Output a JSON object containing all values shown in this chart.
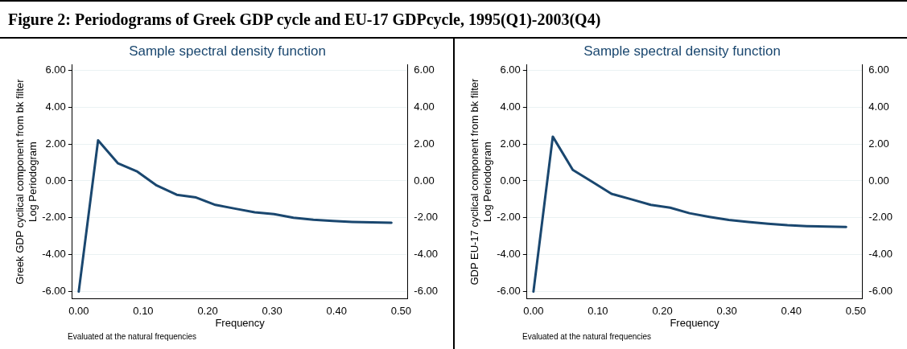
{
  "chart_data": [
    {
      "type": "line",
      "title": "Sample spectral density function",
      "xlabel": "Frequency",
      "ylabel": "Greek GDP cyclical component from bk filter\nLog Periodogram",
      "annotations": [
        "Figure 2: Periodograms of Greek GDP cycle and EU-17 GDPcycle, 1995(Q1)-2003(Q4)",
        "Evaluated at the natural frequencies"
      ],
      "x": [
        0,
        0.03,
        0.061,
        0.091,
        0.121,
        0.152,
        0.182,
        0.212,
        0.242,
        0.273,
        0.303,
        0.333,
        0.364,
        0.394,
        0.424,
        0.455,
        0.485
      ],
      "series": [
        {
          "color": "#1a476f",
          "values": [
            -6.0,
            2.2,
            0.95,
            0.5,
            -0.25,
            -0.75,
            -0.9,
            -1.3,
            -1.5,
            -1.7,
            -1.8,
            -2.0,
            -2.1,
            -2.17,
            -2.22,
            -2.25,
            -2.27
          ]
        }
      ],
      "xlim": [
        -0.01,
        0.51
      ],
      "xticks": [
        {
          "value": 0,
          "label": "0.00"
        },
        {
          "value": 0.1,
          "label": "0.10"
        },
        {
          "value": 0.2,
          "label": "0.20"
        },
        {
          "value": 0.3,
          "label": "0.30"
        },
        {
          "value": 0.4,
          "label": "0.40"
        },
        {
          "value": 0.5,
          "label": "0.50"
        }
      ],
      "ylim": [
        -6.4,
        6.3
      ],
      "yticks": [
        {
          "value": -6,
          "label": "-6.00"
        },
        {
          "value": -4,
          "label": "-4.00"
        },
        {
          "value": -2,
          "label": "-2.00"
        },
        {
          "value": 0,
          "label": "0.00"
        },
        {
          "value": 2,
          "label": "2.00"
        },
        {
          "value": 4,
          "label": "4.00"
        },
        {
          "value": 6,
          "label": "6.00"
        }
      ],
      "y2lim": [
        -6.4,
        6.3
      ],
      "y2ticks": [
        {
          "value": -6,
          "label": "-6.00"
        },
        {
          "value": -4,
          "label": "-4.00"
        },
        {
          "value": -2,
          "label": "-2.00"
        },
        {
          "value": 0,
          "label": "0.00"
        },
        {
          "value": 2,
          "label": "2.00"
        },
        {
          "value": 4,
          "label": "4.00"
        },
        {
          "value": 6,
          "label": "6.00"
        }
      ],
      "grid": "y",
      "legend": false,
      "marker": "none",
      "line_style": "solid"
    },
    {
      "type": "line",
      "title": "Sample spectral density function",
      "xlabel": "Frequency",
      "ylabel": "GDP EU-17 cyclical component from bk filter\nLog Periodogram",
      "annotations": [
        "Evaluated at the natural frequencies"
      ],
      "x": [
        0,
        0.03,
        0.061,
        0.091,
        0.121,
        0.152,
        0.182,
        0.212,
        0.242,
        0.273,
        0.303,
        0.333,
        0.364,
        0.394,
        0.424,
        0.455,
        0.485
      ],
      "series": [
        {
          "color": "#1a476f",
          "values": [
            -6.0,
            2.4,
            0.6,
            -0.05,
            -0.7,
            -1.0,
            -1.3,
            -1.45,
            -1.75,
            -1.95,
            -2.12,
            -2.22,
            -2.32,
            -2.4,
            -2.45,
            -2.48,
            -2.5
          ]
        }
      ],
      "xlim": [
        -0.01,
        0.51
      ],
      "xticks": [
        {
          "value": 0,
          "label": "0.00"
        },
        {
          "value": 0.1,
          "label": "0.10"
        },
        {
          "value": 0.2,
          "label": "0.20"
        },
        {
          "value": 0.3,
          "label": "0.30"
        },
        {
          "value": 0.4,
          "label": "0.40"
        },
        {
          "value": 0.5,
          "label": "0.50"
        }
      ],
      "ylim": [
        -6.4,
        6.3
      ],
      "yticks": [
        {
          "value": -6,
          "label": "-6.00"
        },
        {
          "value": -4,
          "label": "-4.00"
        },
        {
          "value": -2,
          "label": "-2.00"
        },
        {
          "value": 0,
          "label": "0.00"
        },
        {
          "value": 2,
          "label": "2.00"
        },
        {
          "value": 4,
          "label": "4.00"
        },
        {
          "value": 6,
          "label": "6.00"
        }
      ],
      "y2lim": [
        -6.4,
        6.3
      ],
      "y2ticks": [
        {
          "value": -6,
          "label": "-6.00"
        },
        {
          "value": -4,
          "label": "-4.00"
        },
        {
          "value": -2,
          "label": "-2.00"
        },
        {
          "value": 0,
          "label": "0.00"
        },
        {
          "value": 2,
          "label": "2.00"
        },
        {
          "value": 4,
          "label": "4.00"
        },
        {
          "value": 6,
          "label": "6.00"
        }
      ],
      "grid": "y",
      "legend": false,
      "marker": "none",
      "line_style": "solid"
    }
  ]
}
